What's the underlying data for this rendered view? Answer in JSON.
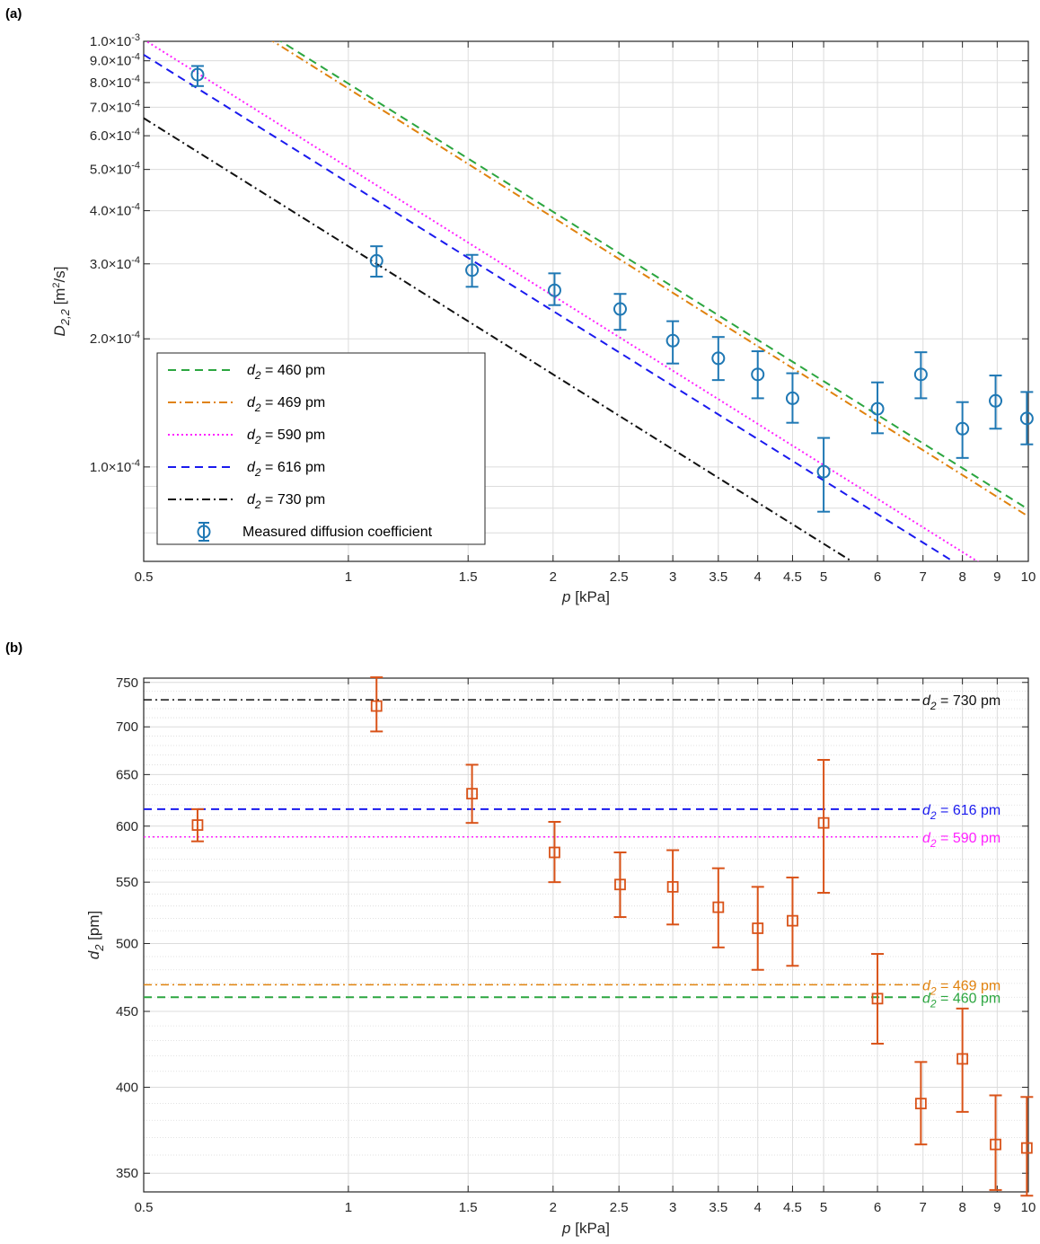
{
  "panel_a": {
    "label": "(a)",
    "xlabel_var": "p",
    "xlabel_unit": "[kPa]",
    "ylabel_var": "D",
    "ylabel_sub": "2,2",
    "ylabel_unit_pre": "[m",
    "ylabel_unit_sup": "2",
    "ylabel_unit_post": "/s]",
    "legend": {
      "var": "d",
      "sub": "2",
      "eq": "=",
      "unit": "pm",
      "measured_label": "Measured diffusion coefficient"
    }
  },
  "panel_b": {
    "label": "(b)",
    "xlabel_var": "p",
    "xlabel_unit": "[kPa]",
    "ylabel_var": "d",
    "ylabel_sub": "2",
    "ylabel_unit": "[pm]",
    "ref_label": {
      "var": "d",
      "sub": "2",
      "eq": "= ",
      "unit": " pm"
    }
  },
  "colors": {
    "d460": "#2ca640",
    "d469": "#e0820e",
    "d590": "#ff20ff",
    "d616": "#1a1aee",
    "d730": "#111111",
    "measured_a": "#1f78b4",
    "measured_b": "#d95319"
  },
  "chart_data": [
    {
      "type": "line",
      "scale": "log-log",
      "xlabel": "p [kPa]",
      "ylabel": "D2,2 [m2/s]",
      "xlim": [
        0.5,
        10
      ],
      "ylim": [
        6e-05,
        0.001
      ],
      "xticks": [
        0.5,
        1,
        1.5,
        2,
        2.5,
        3,
        3.5,
        4,
        4.5,
        5,
        6,
        7,
        8,
        9,
        10
      ],
      "xtick_labels": [
        "0.5",
        "1",
        "1.5",
        "2",
        "2.5",
        "3",
        "3.5",
        "4",
        "4.5",
        "5",
        "6",
        "7",
        "8",
        "9",
        "10"
      ],
      "yticks": [
        {
          "value": 0.001,
          "mant": "1.0",
          "exp": "-3"
        },
        {
          "value": 0.0009,
          "mant": "9.0",
          "exp": "-4"
        },
        {
          "value": 0.0008,
          "mant": "8.0",
          "exp": "-4"
        },
        {
          "value": 0.0007,
          "mant": "7.0",
          "exp": "-4"
        },
        {
          "value": 0.0006,
          "mant": "6.0",
          "exp": "-4"
        },
        {
          "value": 0.0005,
          "mant": "5.0",
          "exp": "-4"
        },
        {
          "value": 0.0004,
          "mant": "4.0",
          "exp": "-4"
        },
        {
          "value": 0.0003,
          "mant": "3.0",
          "exp": "-4"
        },
        {
          "value": 0.0002,
          "mant": "2.0",
          "exp": "-4"
        },
        {
          "value": 0.0001,
          "mant": "1.0",
          "exp": "-4"
        }
      ],
      "grid": true,
      "legend_position": "bottom-left",
      "series": [
        {
          "name": "460",
          "color_key": "d460",
          "style": "dashed",
          "x": [
            0.78,
            10
          ],
          "y": [
            0.00102,
            7.95e-05
          ]
        },
        {
          "name": "469",
          "color_key": "d469",
          "style": "dashdot",
          "x": [
            0.76,
            10
          ],
          "y": [
            0.00102,
            7.65e-05
          ]
        },
        {
          "name": "590",
          "color_key": "d590",
          "style": "dotted",
          "x": [
            0.5,
            10
          ],
          "y": [
            0.00101,
            5.05e-05
          ]
        },
        {
          "name": "616",
          "color_key": "d616",
          "style": "dashed",
          "x": [
            0.5,
            9.3
          ],
          "y": [
            0.00093,
            5e-05
          ]
        },
        {
          "name": "730",
          "color_key": "d730",
          "style": "dashdot",
          "x": [
            0.5,
            6.6
          ],
          "y": [
            0.00066,
            5e-05
          ]
        },
        {
          "name": "Measured diffusion coefficient",
          "color_key": "measured_a",
          "type": "errorbar",
          "points": [
            {
              "x": 0.6,
              "y": 0.000835,
              "lo": 0.000785,
              "hi": 0.000875
            },
            {
              "x": 1.1,
              "y": 0.000305,
              "lo": 0.00028,
              "hi": 0.00033
            },
            {
              "x": 1.52,
              "y": 0.00029,
              "lo": 0.000265,
              "hi": 0.000315
            },
            {
              "x": 2.01,
              "y": 0.00026,
              "lo": 0.00024,
              "hi": 0.000285
            },
            {
              "x": 2.51,
              "y": 0.000235,
              "lo": 0.00021,
              "hi": 0.000255
            },
            {
              "x": 3.0,
              "y": 0.000198,
              "lo": 0.000175,
              "hi": 0.00022
            },
            {
              "x": 3.5,
              "y": 0.00018,
              "lo": 0.00016,
              "hi": 0.000202
            },
            {
              "x": 4.0,
              "y": 0.000165,
              "lo": 0.000145,
              "hi": 0.000187
            },
            {
              "x": 4.5,
              "y": 0.000145,
              "lo": 0.000127,
              "hi": 0.000166
            },
            {
              "x": 5.0,
              "y": 9.75e-05,
              "lo": 7.85e-05,
              "hi": 0.000117
            },
            {
              "x": 6.0,
              "y": 0.000137,
              "lo": 0.00012,
              "hi": 0.000158
            },
            {
              "x": 6.95,
              "y": 0.000165,
              "lo": 0.000145,
              "hi": 0.000186
            },
            {
              "x": 8.0,
              "y": 0.000123,
              "lo": 0.000105,
              "hi": 0.000142
            },
            {
              "x": 8.95,
              "y": 0.000143,
              "lo": 0.000123,
              "hi": 0.000164
            },
            {
              "x": 9.95,
              "y": 0.00013,
              "lo": 0.000113,
              "hi": 0.00015
            }
          ]
        }
      ]
    },
    {
      "type": "scatter",
      "scale": "log-log",
      "xlabel": "p [kPa]",
      "ylabel": "d2 [pm]",
      "xlim": [
        0.5,
        10
      ],
      "ylim": [
        340,
        755
      ],
      "xticks": [
        0.5,
        1,
        1.5,
        2,
        2.5,
        3,
        3.5,
        4,
        4.5,
        5,
        6,
        7,
        8,
        9,
        10
      ],
      "xtick_labels": [
        "0.5",
        "1",
        "1.5",
        "2",
        "2.5",
        "3",
        "3.5",
        "4",
        "4.5",
        "5",
        "6",
        "7",
        "8",
        "9",
        "10"
      ],
      "yticks": [
        350,
        400,
        450,
        500,
        550,
        600,
        650,
        700,
        750
      ],
      "ytick_labels": [
        "350",
        "400",
        "450",
        "500",
        "550",
        "600",
        "650",
        "700",
        "750"
      ],
      "grid": true,
      "reference_lines": [
        {
          "value": 730,
          "label": "730",
          "color_key": "d730",
          "style": "dashdot"
        },
        {
          "value": 616,
          "label": "616",
          "color_key": "d616",
          "style": "dashed"
        },
        {
          "value": 590,
          "label": "590",
          "color_key": "d590",
          "style": "dotted"
        },
        {
          "value": 469,
          "label": "469",
          "color_key": "d469",
          "style": "dashdot"
        },
        {
          "value": 460,
          "label": "460",
          "color_key": "d460",
          "style": "dashed"
        }
      ],
      "series": [
        {
          "name": "",
          "color_key": "measured_b",
          "type": "errorbar",
          "points": [
            {
              "x": 0.6,
              "y": 601,
              "lo": 586,
              "hi": 616
            },
            {
              "x": 1.1,
              "y": 723,
              "lo": 695,
              "hi": 756
            },
            {
              "x": 1.52,
              "y": 631,
              "lo": 603,
              "hi": 660
            },
            {
              "x": 2.01,
              "y": 576,
              "lo": 550,
              "hi": 604
            },
            {
              "x": 2.51,
              "y": 548,
              "lo": 521,
              "hi": 576
            },
            {
              "x": 3.0,
              "y": 546,
              "lo": 515,
              "hi": 578
            },
            {
              "x": 3.5,
              "y": 529,
              "lo": 497,
              "hi": 562
            },
            {
              "x": 4.0,
              "y": 512,
              "lo": 480,
              "hi": 546
            },
            {
              "x": 4.5,
              "y": 518,
              "lo": 483,
              "hi": 554
            },
            {
              "x": 5.0,
              "y": 603,
              "lo": 541,
              "hi": 665
            },
            {
              "x": 6.0,
              "y": 459,
              "lo": 428,
              "hi": 492
            },
            {
              "x": 6.95,
              "y": 390,
              "lo": 366,
              "hi": 416
            },
            {
              "x": 8.0,
              "y": 418,
              "lo": 385,
              "hi": 452
            },
            {
              "x": 8.95,
              "y": 366,
              "lo": 341,
              "hi": 395
            },
            {
              "x": 9.95,
              "y": 364,
              "lo": 338,
              "hi": 394
            }
          ]
        }
      ]
    }
  ]
}
